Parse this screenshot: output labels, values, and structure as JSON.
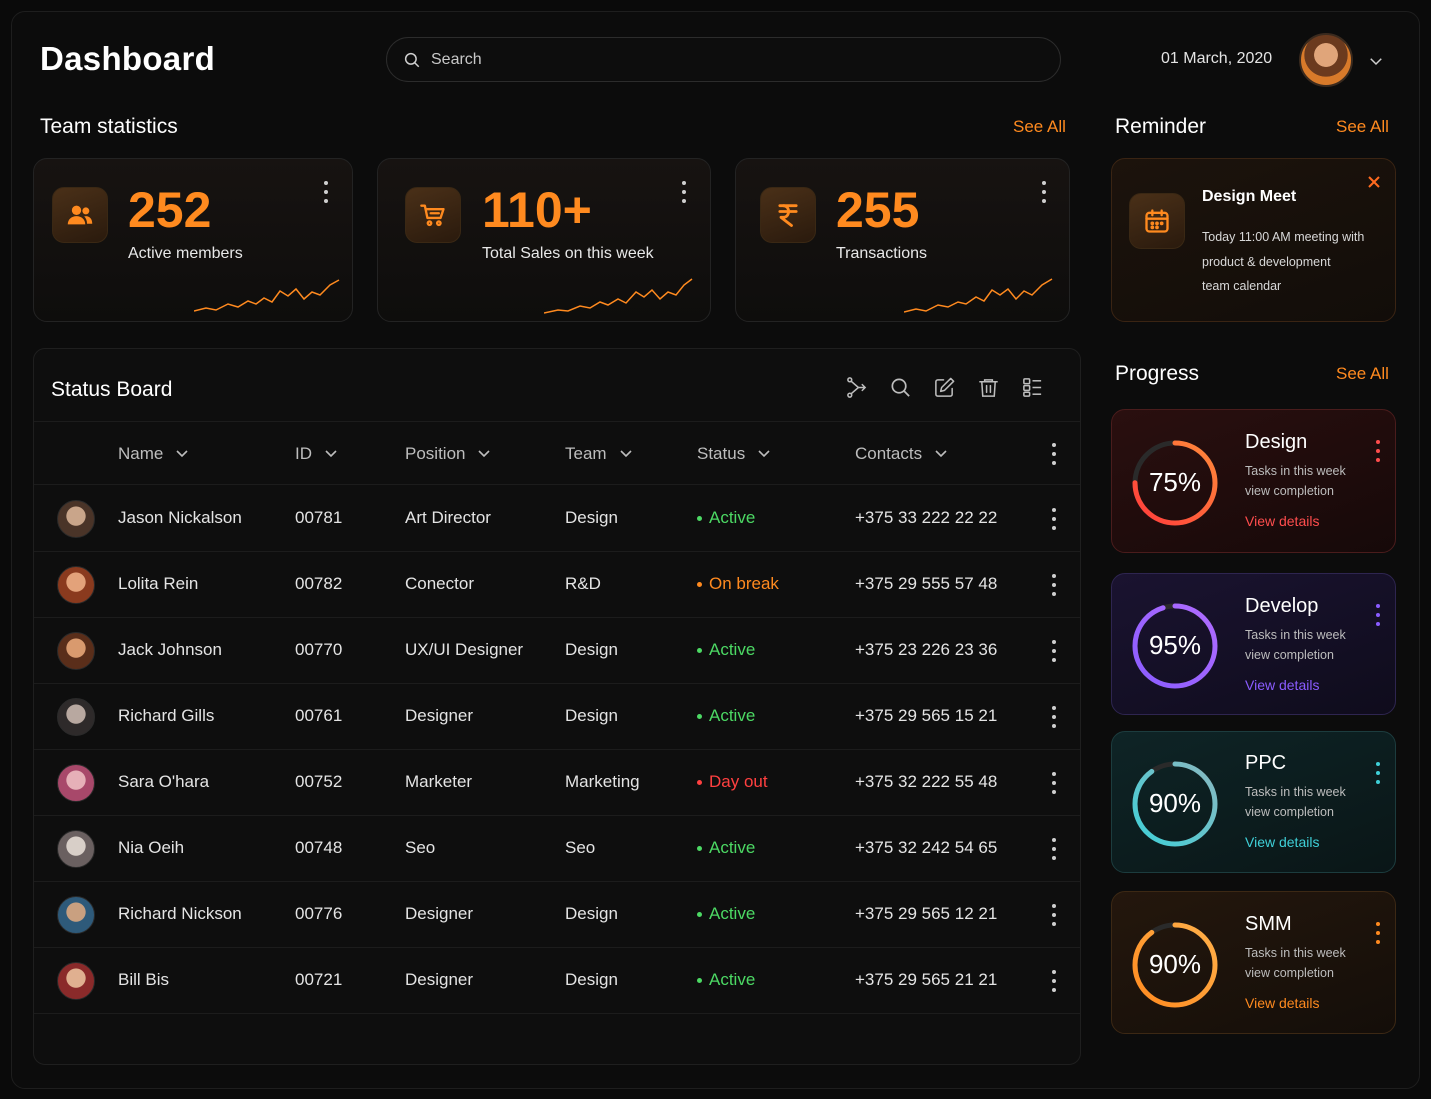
{
  "header": {
    "title": "Dashboard",
    "search_placeholder": "Search",
    "date": "01 March, 2020"
  },
  "team_statistics": {
    "title": "Team statistics",
    "see_all": "See All",
    "cards": [
      {
        "value": "252",
        "label": "Active members",
        "icon": "team-icon"
      },
      {
        "value": "110+",
        "label": "Total Sales on this week",
        "icon": "cart-icon"
      },
      {
        "value": "255",
        "label": "Transactions",
        "icon": "rupee-icon"
      }
    ]
  },
  "reminder": {
    "title": "Reminder",
    "see_all": "See All",
    "card": {
      "title": "Design Meet",
      "line1": "Today 11:00 AM meeting with",
      "line2": "product & development",
      "line3": "team calendar",
      "icon": "calendar-icon"
    }
  },
  "status_board": {
    "title": "Status Board",
    "columns": [
      "Name",
      "ID",
      "Position",
      "Team",
      "Status",
      "Contacts"
    ],
    "rows": [
      {
        "name": "Jason Nickalson",
        "id": "00781",
        "position": "Art Director",
        "team": "Design",
        "status": "Active",
        "contact": "+375 33 222 22 22"
      },
      {
        "name": "Lolita Rein",
        "id": "00782",
        "position": "Conector",
        "team": "R&D",
        "status": "On break",
        "contact": "+375 29 555 57 48"
      },
      {
        "name": "Jack Johnson",
        "id": "00770",
        "position": "UX/UI Designer",
        "team": "Design",
        "status": "Active",
        "contact": "+375 23 226 23 36"
      },
      {
        "name": "Richard Gills",
        "id": "00761",
        "position": "Designer",
        "team": "Design",
        "status": "Active",
        "contact": "+375 29 565 15 21"
      },
      {
        "name": "Sara O'hara",
        "id": "00752",
        "position": "Marketer",
        "team": "Marketing",
        "status": "Day out",
        "contact": "+375 32 222 55 48"
      },
      {
        "name": "Nia Oeih",
        "id": "00748",
        "position": "Seo",
        "team": "Seo",
        "status": "Active",
        "contact": "+375 32 242 54 65"
      },
      {
        "name": "Richard Nickson",
        "id": "00776",
        "position": "Designer",
        "team": "Design",
        "status": "Active",
        "contact": "+375 29 565 12 21"
      },
      {
        "name": "Bill Bis",
        "id": "00721",
        "position": "Designer",
        "team": "Design",
        "status": "Active",
        "contact": "+375 29 565 21 21"
      }
    ]
  },
  "progress": {
    "title": "Progress",
    "see_all": "See All",
    "cards": [
      {
        "title": "Design",
        "percent_label": "75%",
        "percent": 0.75,
        "sub1": "Tasks in this week",
        "sub2": "view completion",
        "link": "View details",
        "accent": "#ff3b3b"
      },
      {
        "title": "Develop",
        "percent_label": "95%",
        "percent": 0.95,
        "sub1": "Tasks in this week",
        "sub2": "view completion",
        "link": "View details",
        "accent": "#8a5cff"
      },
      {
        "title": "PPC",
        "percent_label": "90%",
        "percent": 0.9,
        "sub1": "Tasks in this week",
        "sub2": "view completion",
        "link": "View details",
        "accent": "#3fd0d8"
      },
      {
        "title": "SMM",
        "percent_label": "90%",
        "percent": 0.9,
        "sub1": "Tasks in this week",
        "sub2": "view completion",
        "link": "View details",
        "accent": "#ff8a1f"
      }
    ]
  },
  "colors": {
    "accent": "#ff8a1f",
    "status_active": "#4cd964",
    "status_warning": "#ff8a1f",
    "status_off": "#ff4040"
  }
}
